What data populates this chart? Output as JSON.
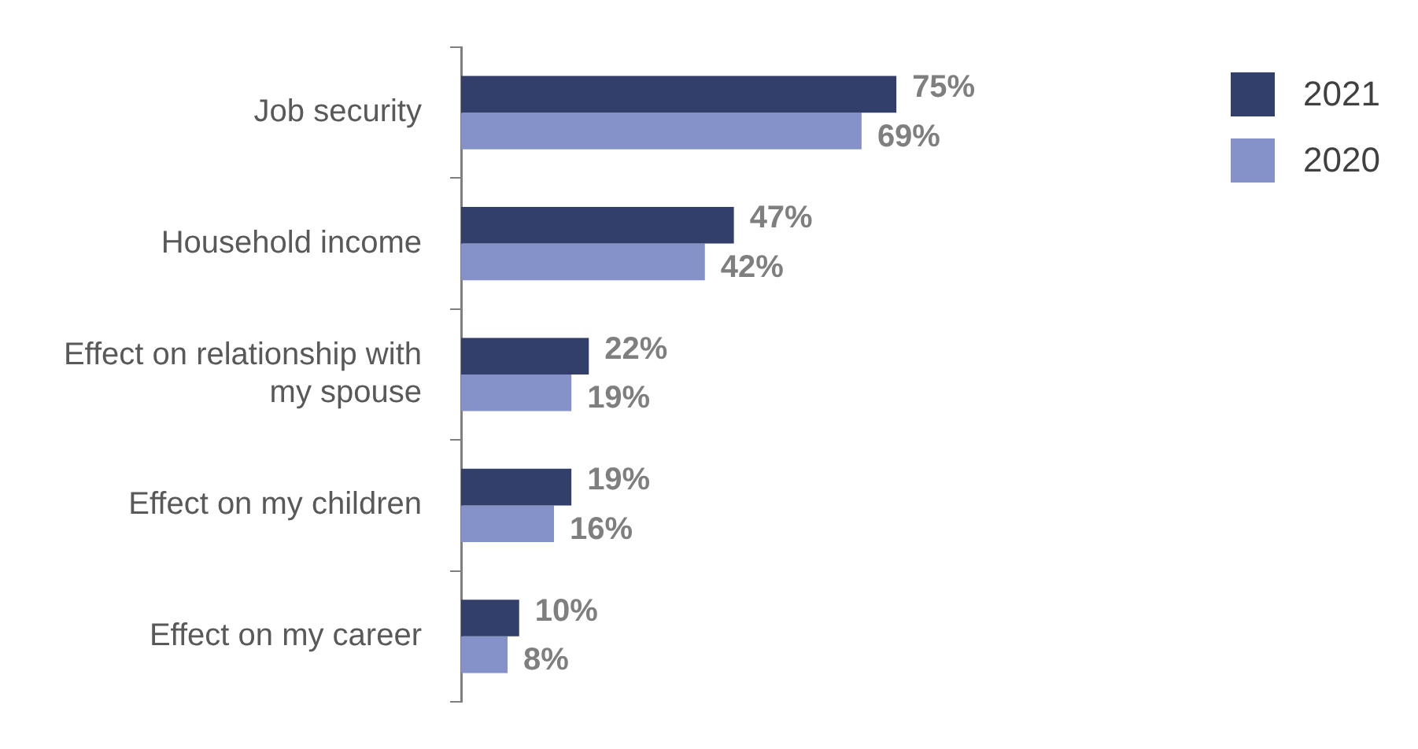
{
  "chart_data": {
    "type": "bar",
    "orientation": "horizontal",
    "categories": [
      "Job security",
      "Household income",
      "Effect on relationship with my spouse",
      "Effect on my children",
      "Effect on my career"
    ],
    "series": [
      {
        "name": "2021",
        "color": "#323f6b",
        "values": [
          75,
          47,
          22,
          19,
          10
        ],
        "value_labels": [
          "75%",
          "47%",
          "22%",
          "19%",
          "10%"
        ]
      },
      {
        "name": "2020",
        "color": "#8591c9",
        "values": [
          69,
          42,
          19,
          16,
          8
        ],
        "value_labels": [
          "69%",
          "42%",
          "19%",
          "16%",
          "8%"
        ]
      }
    ],
    "tick_labels": "y",
    "grid": false,
    "legend": "top right"
  }
}
